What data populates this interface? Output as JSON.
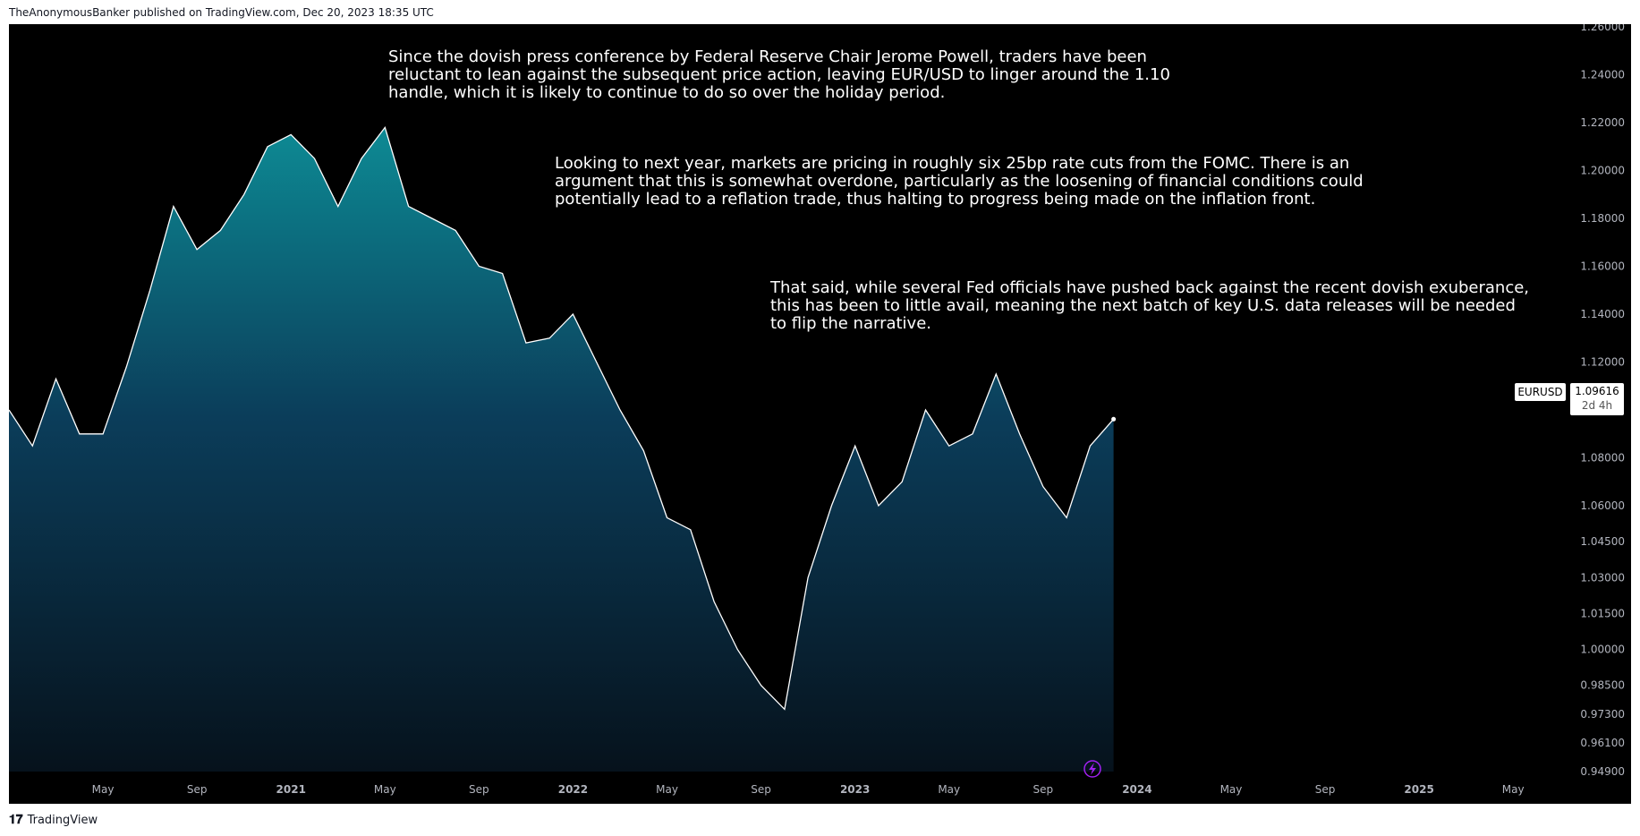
{
  "header": {
    "attribution": "TheAnonymousBanker published on TradingView.com, Dec 20, 2023 18:35 UTC"
  },
  "footer": {
    "brand": "TradingView",
    "logo_icon": "tradingview-logo-icon"
  },
  "annotations": [
    {
      "text": "Since the dovish press conference by Federal Reserve Chair Jerome Powell, traders have been\nreluctant to lean against the subsequent price action, leaving EUR/USD to linger around the 1.10\nhandle, which it is likely to continue to do so over the holiday period."
    },
    {
      "text": "Looking to next year, markets are pricing in roughly six 25bp rate cuts from the FOMC. There is an\nargument that this is somewhat overdone, particularly as the loosening of financial conditions could\npotentially lead to a reflation trade, thus halting to progress being made on the inflation front."
    },
    {
      "text": "That said, while several Fed officials have pushed back against the recent dovish exuberance,\nthis has been to little avail, meaning the next batch of key U.S. data releases will be needed\nto flip the narrative."
    }
  ],
  "price_label": {
    "symbol": "EURUSD",
    "price": "1.09616",
    "countdown": "2d 4h"
  },
  "colors": {
    "background": "#000000",
    "line": "#ffffff",
    "fill_top": "#0d8a94",
    "fill_bottom": "#06121c",
    "axis_text": "#b2b5be",
    "event_icon": "#a020f0"
  },
  "chart_data": {
    "type": "area",
    "symbol": "EURUSD",
    "x_tick_labels": [
      "May",
      "Sep",
      "2021",
      "May",
      "Sep",
      "2022",
      "May",
      "Sep",
      "2023",
      "May",
      "Sep",
      "2024",
      "May",
      "Sep",
      "2025",
      "May"
    ],
    "y_tick_labels": [
      "1.26000",
      "1.24000",
      "1.22000",
      "1.20000",
      "1.18000",
      "1.16000",
      "1.14000",
      "1.12000",
      "1.08000",
      "1.06000",
      "1.04500",
      "1.03000",
      "1.01500",
      "1.00000",
      "0.98500",
      "0.97300",
      "0.96100",
      "0.94900"
    ],
    "x_range": [
      "2020-01",
      "2025-08"
    ],
    "ylim": [
      0.949,
      1.26
    ],
    "grid": false,
    "last_price": 1.09616,
    "x": [
      "2020-01",
      "2020-02",
      "2020-03",
      "2020-04",
      "2020-05",
      "2020-06",
      "2020-07",
      "2020-08",
      "2020-09",
      "2020-10",
      "2020-11",
      "2020-12",
      "2021-01",
      "2021-02",
      "2021-03",
      "2021-04",
      "2021-05",
      "2021-06",
      "2021-07",
      "2021-08",
      "2021-09",
      "2021-10",
      "2021-11",
      "2021-12",
      "2022-01",
      "2022-02",
      "2022-03",
      "2022-04",
      "2022-05",
      "2022-06",
      "2022-07",
      "2022-08",
      "2022-09",
      "2022-10",
      "2022-11",
      "2022-12",
      "2023-01",
      "2023-02",
      "2023-03",
      "2023-04",
      "2023-05",
      "2023-06",
      "2023-07",
      "2023-08",
      "2023-09",
      "2023-10",
      "2023-11",
      "2023-12"
    ],
    "values": [
      1.1,
      1.085,
      1.113,
      1.09,
      1.09,
      1.118,
      1.15,
      1.185,
      1.167,
      1.175,
      1.19,
      1.21,
      1.215,
      1.205,
      1.185,
      1.205,
      1.218,
      1.185,
      1.18,
      1.175,
      1.16,
      1.157,
      1.128,
      1.13,
      1.14,
      1.12,
      1.1,
      1.083,
      1.055,
      1.05,
      1.02,
      1.0,
      0.985,
      0.975,
      1.03,
      1.06,
      1.085,
      1.06,
      1.07,
      1.1,
      1.085,
      1.09,
      1.115,
      1.09,
      1.068,
      1.055,
      1.085,
      1.09616
    ]
  }
}
